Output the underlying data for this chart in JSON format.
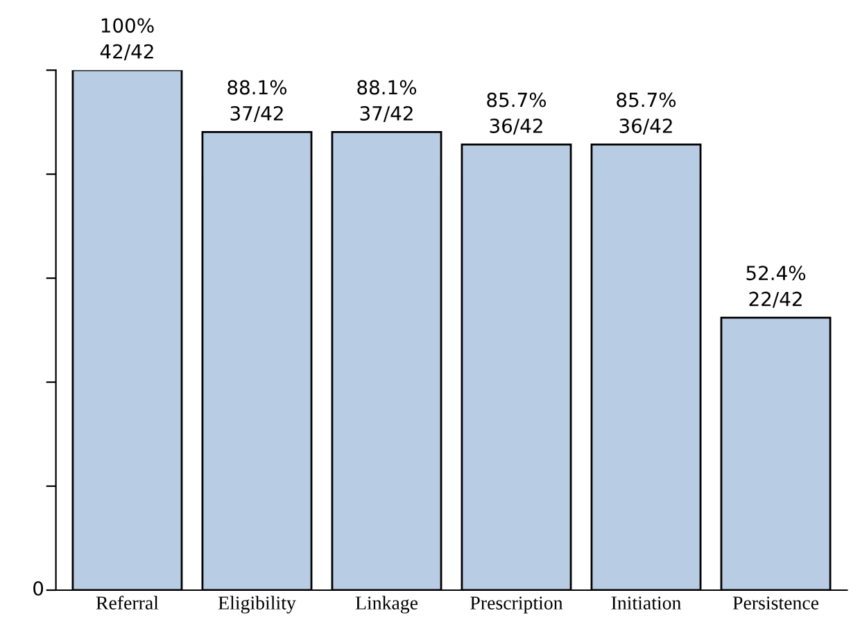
{
  "chart_data": {
    "type": "bar",
    "categories": [
      "Referral",
      "Eligibility",
      "Linkage",
      "Prescription",
      "Initiation",
      "Persistence"
    ],
    "values": [
      100,
      88.1,
      88.1,
      85.7,
      85.7,
      52.4
    ],
    "value_labels": [
      "100%\n42/42",
      "88.1%\n37/42",
      "88.1%\n37/42",
      "85.7%\n36/42",
      "85.7%\n36/42",
      "52.4%\n22/42"
    ],
    "color": "#b8cce4",
    "ylim": [
      0,
      100
    ],
    "yticks": [
      {
        "value": 0,
        "label": null
      },
      {
        "value": 20,
        "label": null
      },
      {
        "value": 40,
        "label": null
      },
      {
        "value": 60,
        "label": null
      },
      {
        "value": 80,
        "label": null
      },
      {
        "value": 100,
        "label": null
      }
    ],
    "annotations": [
      "0"
    ]
  }
}
